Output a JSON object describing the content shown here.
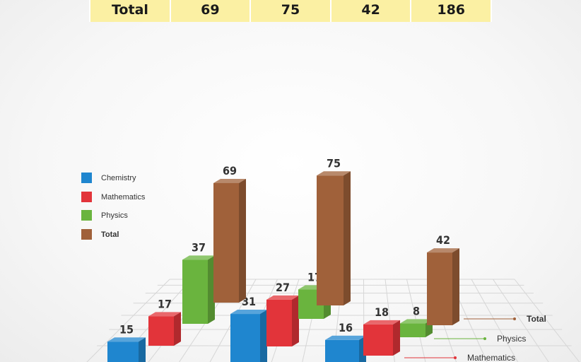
{
  "table": {
    "total_row": {
      "label": "Total",
      "cells": [
        "69",
        "75",
        "42",
        "186"
      ]
    }
  },
  "chart_data": {
    "type": "bar",
    "categories": [
      "",
      "",
      ""
    ],
    "series": [
      {
        "name": "Chemistry",
        "values": [
          15,
          31,
          16
        ],
        "color": "#1f86cf"
      },
      {
        "name": "Mathematics",
        "values": [
          17,
          27,
          18
        ],
        "color": "#e2343a"
      },
      {
        "name": "Physics",
        "values": [
          37,
          17,
          8
        ],
        "color": "#6ab43e"
      },
      {
        "name": "Total",
        "values": [
          69,
          75,
          42
        ],
        "color": "#a0613a"
      }
    ],
    "legend": {
      "placement": "left",
      "entries": [
        "Chemistry",
        "Mathematics",
        "Physics",
        "Total"
      ]
    },
    "depth_axis_labels": [
      "Total",
      "Physics",
      "Mathematics"
    ],
    "style": "3d-column",
    "grid": true
  }
}
